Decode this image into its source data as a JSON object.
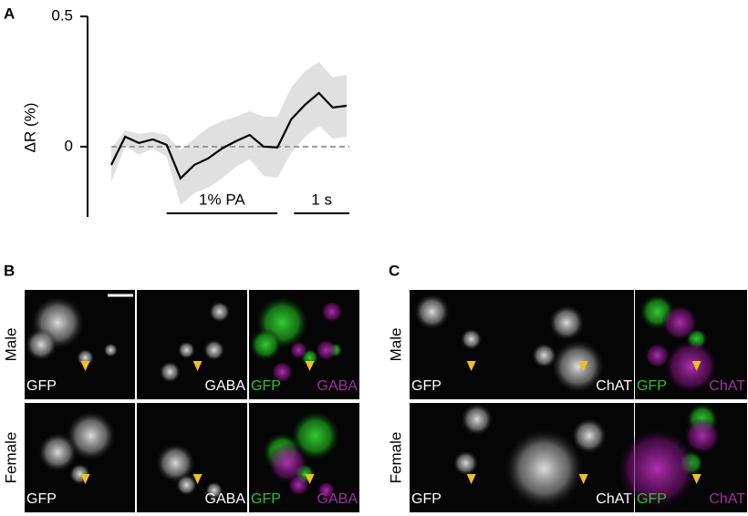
{
  "chart_data": {
    "type": "line",
    "panel_label": "A",
    "ylabel": "ΔR (%)",
    "x": [
      0,
      0.25,
      0.5,
      0.75,
      1,
      1.25,
      1.5,
      1.75,
      2,
      2.25,
      2.5,
      2.75,
      3,
      3.25,
      3.5,
      3.75,
      4,
      4.25
    ],
    "values": [
      -0.07,
      0.038,
      0.014,
      0.028,
      0.007,
      -0.122,
      -0.07,
      -0.045,
      -0.007,
      0.021,
      0.045,
      0,
      -0.003,
      0.105,
      0.161,
      0.206,
      0.15,
      0.157
    ],
    "upper": [
      -0.007,
      0.063,
      0.049,
      0.056,
      0.045,
      -0.014,
      0.031,
      0.073,
      0.098,
      0.115,
      0.136,
      0.115,
      0.115,
      0.227,
      0.29,
      0.325,
      0.266,
      0.276
    ],
    "lower": [
      -0.136,
      0.003,
      -0.031,
      -0.007,
      -0.038,
      -0.224,
      -0.178,
      -0.157,
      -0.122,
      -0.077,
      -0.049,
      -0.112,
      -0.119,
      -0.024,
      0.038,
      0.08,
      0.031,
      0.038
    ],
    "color": "#000000",
    "band_color": "#e0e0e0",
    "xlim": [
      0,
      4.3
    ],
    "ylim": [
      -0.27,
      0.5
    ],
    "yticks": [
      0.5,
      0
    ],
    "reference_line": 0,
    "bars": [
      {
        "label": "1% PA",
        "start": 1,
        "end": 3
      },
      {
        "label": "1 s",
        "start": 3.3,
        "end": 4.3
      }
    ]
  },
  "panels": [
    {
      "label": "B",
      "rows": [
        "Male",
        "Female"
      ],
      "channels": [
        "GFP",
        "GABA"
      ]
    },
    {
      "label": "C",
      "rows": [
        "Male",
        "Female"
      ],
      "channels": [
        "GFP",
        "ChAT"
      ]
    }
  ]
}
